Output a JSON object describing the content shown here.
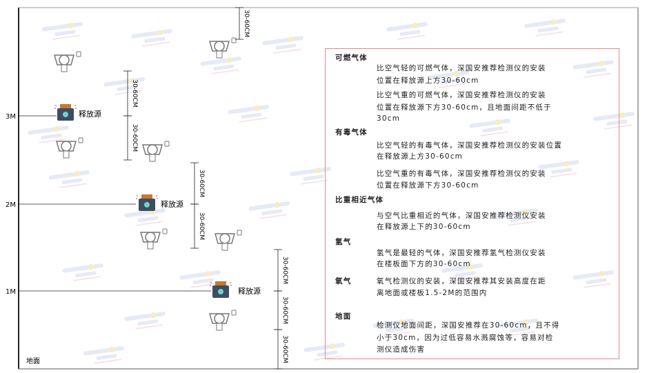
{
  "watermark": "SINGOAN 深国安",
  "levels": [
    {
      "label": "3M"
    },
    {
      "label": "2M"
    },
    {
      "label": "1M"
    }
  ],
  "ground_label": "地面",
  "source_label": "释放源",
  "dimension_label": "30-60CM",
  "colors": {
    "panel_border": "#e8868a",
    "source_body": "#3c4e63",
    "source_cap": "#c9782f",
    "detector": "#777777"
  },
  "panel": {
    "sections": [
      {
        "heading": "可燃气体",
        "paragraphs": [
          [
            "比空气轻的可燃气体，深国安推荐检测仪的安装",
            "位置在释放源上方30-60cm"
          ],
          [
            "比空气重的可燃气体，深国安推荐检测仪的安装",
            "位置在释放源下方30-60cm，且地面间距不低于",
            "30cm"
          ]
        ]
      },
      {
        "heading": "有毒气体",
        "paragraphs": [
          [
            "比空气轻的有毒气体，深国安推荐检测仪的安装位置",
            "在释放源上方30-60cm"
          ],
          [
            "比空气重的有毒气体，深国安推荐检测仪的安装",
            "位置在释放源下方30-60cm"
          ]
        ]
      },
      {
        "heading": "比重相近气体",
        "paragraphs": [
          [
            "与空气比重相近的气体，深国安推荐检测仪安装",
            "在释放源上下的30-60cm"
          ]
        ]
      },
      {
        "heading": "氢气",
        "paragraphs": [
          [
            "氢气是最轻的气体，深国安推荐氢气检测仪安装",
            "在楼板面下方的30-60cm"
          ]
        ]
      },
      {
        "heading": "氧气",
        "paragraphs": [
          [
            "氧气检测仪的安装，深国安推荐其安装高度在距",
            "离地面或楼板1.5-2M的范围内"
          ]
        ]
      },
      {
        "heading": "地面",
        "paragraphs": [
          [
            "检测仪地面间距，深国安推荐在30-60cm，且不得",
            "小于30cm，因为过低容易水溅腐蚀等，容易对检",
            "测仪造成伤害"
          ]
        ]
      }
    ]
  }
}
